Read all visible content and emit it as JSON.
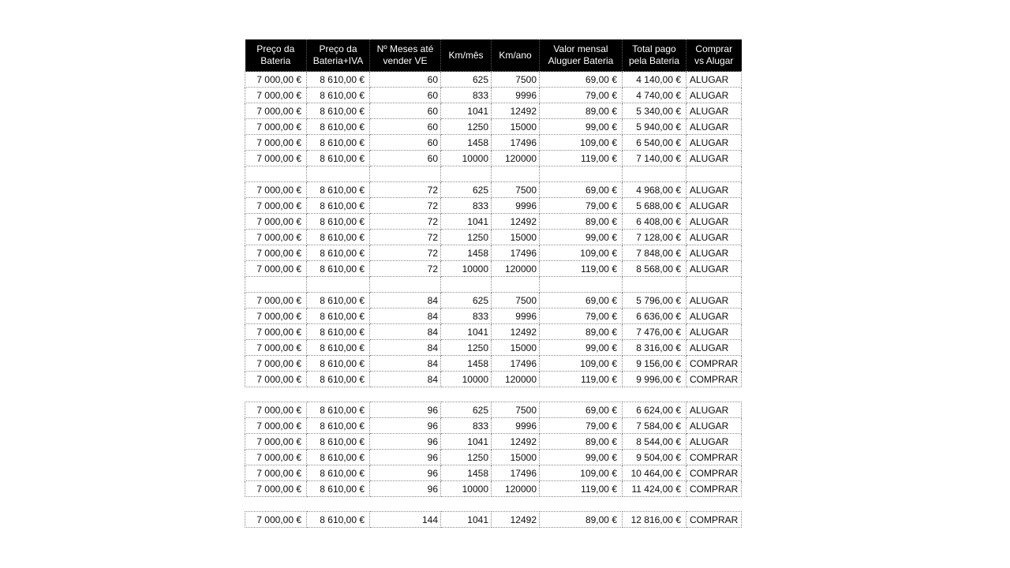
{
  "table": {
    "columns": [
      "Preço da\nBateria",
      "Preço da\nBateria+IVA",
      "Nº Meses até\nvender VE",
      "Km/mês",
      "Km/ano",
      "Valor mensal\nAluguer Bateria",
      "Total pago\npela Bateria",
      "Comprar\nvs Alugar"
    ],
    "groups": [
      {
        "separator_after": "empty_row",
        "rows": [
          {
            "preco": "7 000,00 €",
            "preco_iva": "8 610,00 €",
            "meses": "60",
            "km_mes": "625",
            "km_ano": "7500",
            "valor_mensal": "69,00 €",
            "total_pago": "4 140,00 €",
            "decisao": "ALUGAR"
          },
          {
            "preco": "7 000,00 €",
            "preco_iva": "8 610,00 €",
            "meses": "60",
            "km_mes": "833",
            "km_ano": "9996",
            "valor_mensal": "79,00 €",
            "total_pago": "4 740,00 €",
            "decisao": "ALUGAR"
          },
          {
            "preco": "7 000,00 €",
            "preco_iva": "8 610,00 €",
            "meses": "60",
            "km_mes": "1041",
            "km_ano": "12492",
            "valor_mensal": "89,00 €",
            "total_pago": "5 340,00 €",
            "decisao": "ALUGAR"
          },
          {
            "preco": "7 000,00 €",
            "preco_iva": "8 610,00 €",
            "meses": "60",
            "km_mes": "1250",
            "km_ano": "15000",
            "valor_mensal": "99,00 €",
            "total_pago": "5 940,00 €",
            "decisao": "ALUGAR"
          },
          {
            "preco": "7 000,00 €",
            "preco_iva": "8 610,00 €",
            "meses": "60",
            "km_mes": "1458",
            "km_ano": "17496",
            "valor_mensal": "109,00 €",
            "total_pago": "6 540,00 €",
            "decisao": "ALUGAR"
          },
          {
            "preco": "7 000,00 €",
            "preco_iva": "8 610,00 €",
            "meses": "60",
            "km_mes": "10000",
            "km_ano": "120000",
            "valor_mensal": "119,00 €",
            "total_pago": "7 140,00 €",
            "decisao": "ALUGAR"
          }
        ]
      },
      {
        "separator_after": "empty_row",
        "rows": [
          {
            "preco": "7 000,00 €",
            "preco_iva": "8 610,00 €",
            "meses": "72",
            "km_mes": "625",
            "km_ano": "7500",
            "valor_mensal": "69,00 €",
            "total_pago": "4 968,00 €",
            "decisao": "ALUGAR"
          },
          {
            "preco": "7 000,00 €",
            "preco_iva": "8 610,00 €",
            "meses": "72",
            "km_mes": "833",
            "km_ano": "9996",
            "valor_mensal": "79,00 €",
            "total_pago": "5 688,00 €",
            "decisao": "ALUGAR"
          },
          {
            "preco": "7 000,00 €",
            "preco_iva": "8 610,00 €",
            "meses": "72",
            "km_mes": "1041",
            "km_ano": "12492",
            "valor_mensal": "89,00 €",
            "total_pago": "6 408,00 €",
            "decisao": "ALUGAR"
          },
          {
            "preco": "7 000,00 €",
            "preco_iva": "8 610,00 €",
            "meses": "72",
            "km_mes": "1250",
            "km_ano": "15000",
            "valor_mensal": "99,00 €",
            "total_pago": "7 128,00 €",
            "decisao": "ALUGAR"
          },
          {
            "preco": "7 000,00 €",
            "preco_iva": "8 610,00 €",
            "meses": "72",
            "km_mes": "1458",
            "km_ano": "17496",
            "valor_mensal": "109,00 €",
            "total_pago": "7 848,00 €",
            "decisao": "ALUGAR"
          },
          {
            "preco": "7 000,00 €",
            "preco_iva": "8 610,00 €",
            "meses": "72",
            "km_mes": "10000",
            "km_ano": "120000",
            "valor_mensal": "119,00 €",
            "total_pago": "8 568,00 €",
            "decisao": "ALUGAR"
          }
        ]
      },
      {
        "separator_after": "gap",
        "rows": [
          {
            "preco": "7 000,00 €",
            "preco_iva": "8 610,00 €",
            "meses": "84",
            "km_mes": "625",
            "km_ano": "7500",
            "valor_mensal": "69,00 €",
            "total_pago": "5 796,00 €",
            "decisao": "ALUGAR"
          },
          {
            "preco": "7 000,00 €",
            "preco_iva": "8 610,00 €",
            "meses": "84",
            "km_mes": "833",
            "km_ano": "9996",
            "valor_mensal": "79,00 €",
            "total_pago": "6 636,00 €",
            "decisao": "ALUGAR"
          },
          {
            "preco": "7 000,00 €",
            "preco_iva": "8 610,00 €",
            "meses": "84",
            "km_mes": "1041",
            "km_ano": "12492",
            "valor_mensal": "89,00 €",
            "total_pago": "7 476,00 €",
            "decisao": "ALUGAR"
          },
          {
            "preco": "7 000,00 €",
            "preco_iva": "8 610,00 €",
            "meses": "84",
            "km_mes": "1250",
            "km_ano": "15000",
            "valor_mensal": "99,00 €",
            "total_pago": "8 316,00 €",
            "decisao": "ALUGAR"
          },
          {
            "preco": "7 000,00 €",
            "preco_iva": "8 610,00 €",
            "meses": "84",
            "km_mes": "1458",
            "km_ano": "17496",
            "valor_mensal": "109,00 €",
            "total_pago": "9 156,00 €",
            "decisao": "COMPRAR"
          },
          {
            "preco": "7 000,00 €",
            "preco_iva": "8 610,00 €",
            "meses": "84",
            "km_mes": "10000",
            "km_ano": "120000",
            "valor_mensal": "119,00 €",
            "total_pago": "9 996,00 €",
            "decisao": "COMPRAR"
          }
        ]
      },
      {
        "separator_after": "gap",
        "rows": [
          {
            "preco": "7 000,00 €",
            "preco_iva": "8 610,00 €",
            "meses": "96",
            "km_mes": "625",
            "km_ano": "7500",
            "valor_mensal": "69,00 €",
            "total_pago": "6 624,00 €",
            "decisao": "ALUGAR"
          },
          {
            "preco": "7 000,00 €",
            "preco_iva": "8 610,00 €",
            "meses": "96",
            "km_mes": "833",
            "km_ano": "9996",
            "valor_mensal": "79,00 €",
            "total_pago": "7 584,00 €",
            "decisao": "ALUGAR"
          },
          {
            "preco": "7 000,00 €",
            "preco_iva": "8 610,00 €",
            "meses": "96",
            "km_mes": "1041",
            "km_ano": "12492",
            "valor_mensal": "89,00 €",
            "total_pago": "8 544,00 €",
            "decisao": "ALUGAR"
          },
          {
            "preco": "7 000,00 €",
            "preco_iva": "8 610,00 €",
            "meses": "96",
            "km_mes": "1250",
            "km_ano": "15000",
            "valor_mensal": "99,00 €",
            "total_pago": "9 504,00 €",
            "decisao": "COMPRAR"
          },
          {
            "preco": "7 000,00 €",
            "preco_iva": "8 610,00 €",
            "meses": "96",
            "km_mes": "1458",
            "km_ano": "17496",
            "valor_mensal": "109,00 €",
            "total_pago": "10 464,00 €",
            "decisao": "COMPRAR"
          },
          {
            "preco": "7 000,00 €",
            "preco_iva": "8 610,00 €",
            "meses": "96",
            "km_mes": "10000",
            "km_ano": "120000",
            "valor_mensal": "119,00 €",
            "total_pago": "11 424,00 €",
            "decisao": "COMPRAR"
          }
        ]
      },
      {
        "separator_after": "none",
        "rows": [
          {
            "preco": "7 000,00 €",
            "preco_iva": "8 610,00 €",
            "meses": "144",
            "km_mes": "1041",
            "km_ano": "12492",
            "valor_mensal": "89,00 €",
            "total_pago": "12 816,00 €",
            "decisao": "COMPRAR"
          }
        ]
      }
    ],
    "colors": {
      "header_bg": "#000000",
      "header_text": "#ffffff",
      "cell_text": "#0d0d0d",
      "grid_border": "#8c8c8c",
      "page_bg": "#ffffff"
    }
  }
}
